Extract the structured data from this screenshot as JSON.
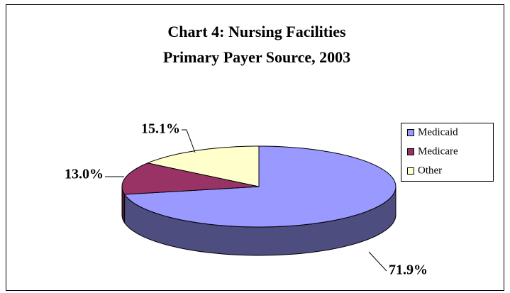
{
  "chart_data": {
    "type": "pie",
    "title": [
      "Chart 4: Nursing Facilities",
      "Primary Payer Source, 2003"
    ],
    "categories": [
      "Medicaid",
      "Medicare",
      "Other"
    ],
    "values": [
      71.9,
      13.0,
      15.1
    ],
    "value_labels": [
      "71.9%",
      "13.0%",
      "15.1%"
    ],
    "colors": [
      "#9999ff",
      "#993366",
      "#ffffcc"
    ],
    "legend": "right"
  }
}
